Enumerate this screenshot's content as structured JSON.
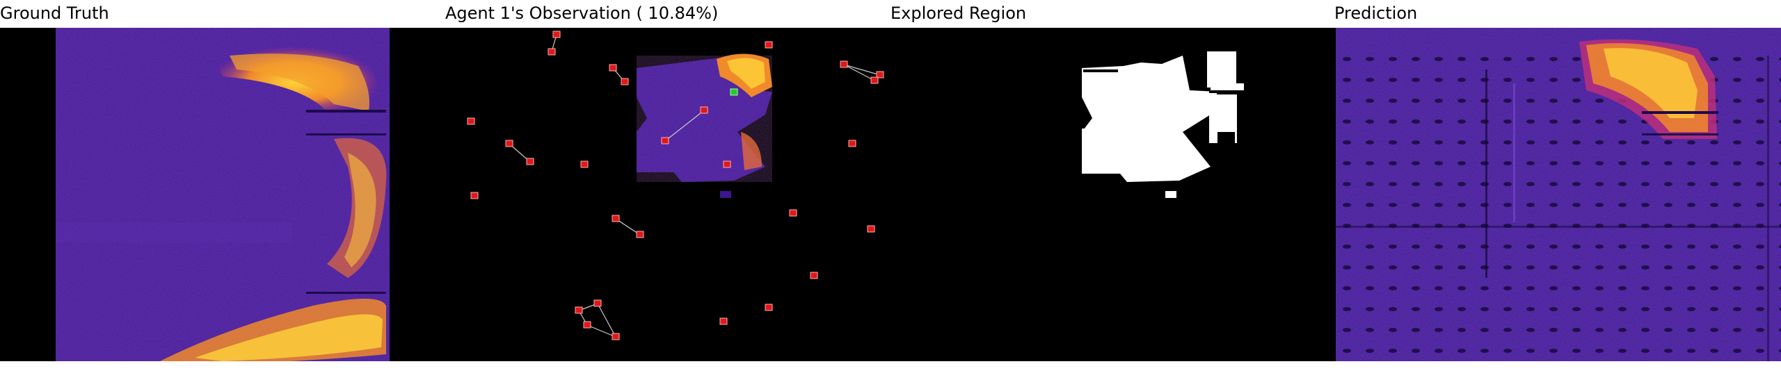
{
  "panels": {
    "ground_truth": {
      "title": "Ground Truth"
    },
    "observation": {
      "title": "Agent 1's Observation ( 10.84%)"
    },
    "explored": {
      "title": "Explored Region"
    },
    "prediction": {
      "title": "Prediction"
    }
  },
  "colors": {
    "dark_purple": "#2a0f73",
    "mid_purple": "#5b1fb0",
    "magenta": "#c2307a",
    "orange": "#f08a2a",
    "yellow": "#ffd33a",
    "agent_red": "#e01818",
    "agent_green": "#22cc22",
    "explored_white": "#ffffff"
  },
  "agents": {
    "count": 28,
    "highlighted": "green"
  }
}
